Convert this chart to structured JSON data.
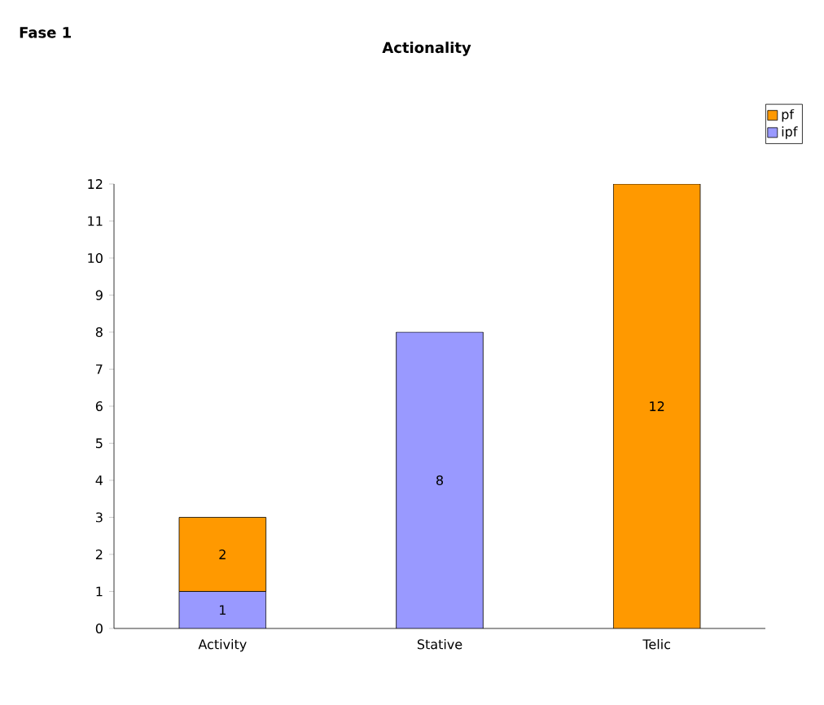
{
  "chart_data": {
    "type": "bar",
    "stacked": true,
    "title": "Actionality",
    "annotations": [
      "Fase 1"
    ],
    "categories": [
      "Activity",
      "Stative",
      "Telic"
    ],
    "series": [
      {
        "name": "ipf",
        "color": "#9999ff",
        "values": [
          1,
          8,
          null
        ]
      },
      {
        "name": "pf",
        "color": "#ff9900",
        "values": [
          2,
          null,
          12
        ]
      }
    ],
    "ylim": [
      0,
      12
    ],
    "yticks": [
      0,
      1,
      2,
      3,
      4,
      5,
      6,
      7,
      8,
      9,
      10,
      11,
      12
    ],
    "data_labels": true,
    "legend": "top right",
    "grid": false
  }
}
